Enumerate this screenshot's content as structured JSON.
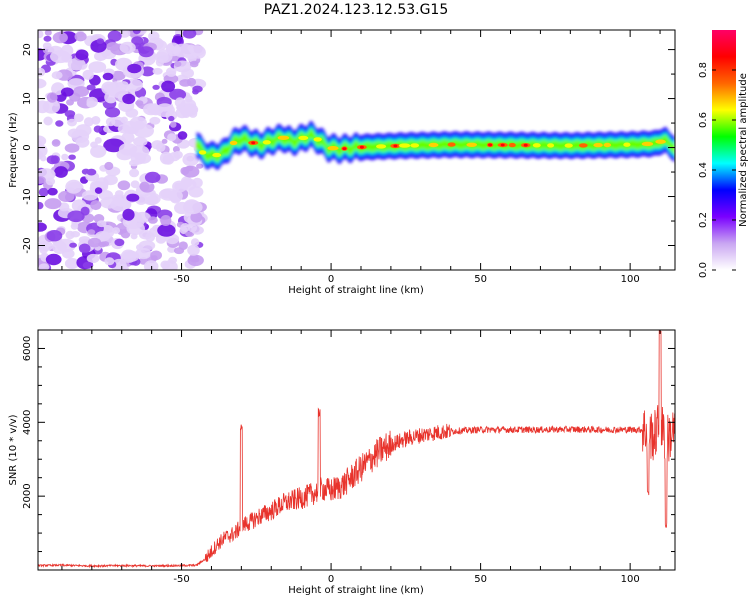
{
  "title": "PAZ1.2024.123.12.53.G15",
  "chart_data": [
    {
      "type": "heatmap",
      "xlabel": "Height of straight line (km)",
      "ylabel": "Frequency (Hz)",
      "xlim": [
        -98,
        115
      ],
      "ylim": [
        -25,
        24
      ],
      "x_ticks": [
        -50,
        0,
        50,
        100
      ],
      "x_tick_labels": [
        "-50",
        "0",
        "50",
        "100"
      ],
      "y_ticks": [
        -20,
        -10,
        0,
        10,
        20
      ],
      "y_tick_labels": [
        "-20",
        "-10",
        "0",
        "10",
        "20"
      ],
      "noise_region_x": [
        -98,
        -45
      ],
      "signal_ridge": {
        "x": [
          -45,
          -43,
          -40,
          -36,
          -33,
          -30,
          -27,
          -24,
          -20,
          -16,
          -13,
          -10,
          -7,
          -4,
          -1,
          3,
          8,
          15,
          25,
          40,
          60,
          80,
          100,
          108,
          112,
          115
        ],
        "frequency": [
          1,
          -1,
          -1.8,
          -1.2,
          0.8,
          1.8,
          1.2,
          0.5,
          1.4,
          2,
          1.2,
          1.8,
          2.5,
          1.5,
          0,
          -0.3,
          0,
          0.2,
          0.4,
          0.6,
          0.5,
          0.4,
          0.6,
          0.8,
          1.5,
          -0.5
        ]
      },
      "colorbar": {
        "label": "Normalized spectral amplitude",
        "range": [
          0,
          0.96
        ],
        "ticks": [
          0.0,
          0.2,
          0.4,
          0.6,
          0.8
        ],
        "tick_labels": [
          "0.0",
          "0.2",
          "0.4",
          "0.6",
          "0.8"
        ],
        "colors": [
          "#ffffff",
          "#c9a6f2",
          "#7a00ff",
          "#0000ff",
          "#00ffff",
          "#00ff00",
          "#ffff00",
          "#ff6600",
          "#ff0000",
          "#ff0066"
        ]
      }
    },
    {
      "type": "line",
      "xlabel": "Height of straight line (km)",
      "ylabel": "SNR (10 * v/v)",
      "xlim": [
        -98,
        115
      ],
      "ylim": [
        0,
        6500
      ],
      "x_ticks": [
        -50,
        0,
        50,
        100
      ],
      "x_tick_labels": [
        "-50",
        "0",
        "50",
        "100"
      ],
      "y_ticks": [
        2000,
        4000,
        6000
      ],
      "y_tick_labels": [
        "2000",
        "4000",
        "6000"
      ],
      "color": "#e8332c",
      "series": [
        {
          "x": [
            -98,
            -90,
            -80,
            -70,
            -60,
            -50,
            -45,
            -42,
            -40,
            -38,
            -35,
            -32,
            -30,
            -27,
            -24,
            -20,
            -16,
            -12,
            -8,
            -4,
            -3,
            0,
            4,
            8,
            12,
            16,
            20,
            25,
            30,
            35,
            40,
            45,
            50,
            60,
            70,
            80,
            90,
            100,
            105,
            108,
            110,
            112,
            115
          ],
          "y": [
            120,
            130,
            110,
            120,
            110,
            120,
            130,
            300,
            500,
            700,
            900,
            1000,
            1200,
            1300,
            1450,
            1600,
            1800,
            1900,
            2000,
            2150,
            2200,
            2150,
            2300,
            2600,
            2900,
            3200,
            3400,
            3550,
            3650,
            3720,
            3760,
            3780,
            3800,
            3800,
            3800,
            3810,
            3800,
            3800,
            3800,
            3600,
            4000,
            3500,
            3800
          ]
        }
      ],
      "spikes": [
        {
          "x": -30,
          "y": 3850
        },
        {
          "x": -4,
          "y": 4250
        },
        {
          "x": 110,
          "y": 6500
        },
        {
          "x": 112,
          "y": 1200
        },
        {
          "x": 106,
          "y": 2100
        }
      ]
    }
  ]
}
